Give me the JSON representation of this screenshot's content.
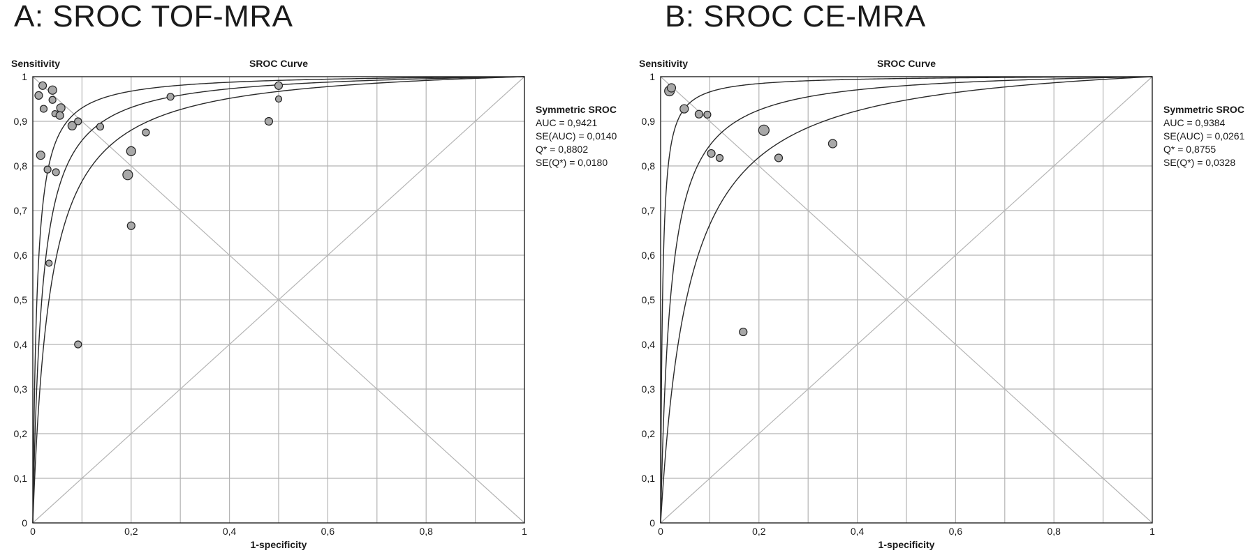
{
  "chart_data": [
    {
      "type": "scatter",
      "title": "A: SROC TOF-MRA",
      "subtitle": "SROC Curve",
      "xlabel": "1-specificity",
      "ylabel": "Sensitivity",
      "xlim": [
        0,
        1
      ],
      "ylim": [
        0,
        1
      ],
      "x_ticks": [
        "0",
        "0,2",
        "0,4",
        "0,6",
        "0,8",
        "1"
      ],
      "y_ticks": [
        "0",
        "0,1",
        "0,2",
        "0,3",
        "0,4",
        "0,5",
        "0,6",
        "0,7",
        "0,8",
        "0,9",
        "1"
      ],
      "grid": true,
      "stats": {
        "heading": "Symmetric SROC",
        "lines": [
          "AUC = 0,9421",
          "SE(AUC) = 0,0140",
          "Q* = 0,8802",
          "SE(Q*) = 0,0180"
        ]
      },
      "points": [
        {
          "x": 0.02,
          "y": 0.98,
          "size": 9
        },
        {
          "x": 0.04,
          "y": 0.97,
          "size": 10
        },
        {
          "x": 0.012,
          "y": 0.958,
          "size": 9
        },
        {
          "x": 0.04,
          "y": 0.948,
          "size": 8
        },
        {
          "x": 0.022,
          "y": 0.928,
          "size": 8
        },
        {
          "x": 0.057,
          "y": 0.93,
          "size": 10
        },
        {
          "x": 0.045,
          "y": 0.917,
          "size": 7
        },
        {
          "x": 0.055,
          "y": 0.913,
          "size": 9
        },
        {
          "x": 0.08,
          "y": 0.89,
          "size": 10
        },
        {
          "x": 0.092,
          "y": 0.9,
          "size": 8
        },
        {
          "x": 0.137,
          "y": 0.888,
          "size": 8
        },
        {
          "x": 0.016,
          "y": 0.824,
          "size": 10
        },
        {
          "x": 0.03,
          "y": 0.792,
          "size": 8
        },
        {
          "x": 0.047,
          "y": 0.786,
          "size": 8
        },
        {
          "x": 0.2,
          "y": 0.833,
          "size": 11
        },
        {
          "x": 0.193,
          "y": 0.78,
          "size": 12
        },
        {
          "x": 0.23,
          "y": 0.875,
          "size": 8
        },
        {
          "x": 0.28,
          "y": 0.955,
          "size": 8
        },
        {
          "x": 0.2,
          "y": 0.666,
          "size": 9
        },
        {
          "x": 0.033,
          "y": 0.582,
          "size": 7
        },
        {
          "x": 0.092,
          "y": 0.4,
          "size": 8
        },
        {
          "x": 0.48,
          "y": 0.9,
          "size": 9
        },
        {
          "x": 0.5,
          "y": 0.98,
          "size": 9
        },
        {
          "x": 0.5,
          "y": 0.95,
          "size": 7
        }
      ]
    },
    {
      "type": "scatter",
      "title": "B: SROC CE-MRA",
      "subtitle": "SROC Curve",
      "xlabel": "1-specificity",
      "ylabel": "Sensitivity",
      "xlim": [
        0,
        1
      ],
      "ylim": [
        0,
        1
      ],
      "x_ticks": [
        "0",
        "0,2",
        "0,4",
        "0,6",
        "0,8",
        "1"
      ],
      "y_ticks": [
        "0",
        "0,1",
        "0,2",
        "0,3",
        "0,4",
        "0,5",
        "0,6",
        "0,7",
        "0,8",
        "0,9",
        "1"
      ],
      "grid": true,
      "stats": {
        "heading": "Symmetric SROC",
        "lines": [
          "AUC = 0,9384",
          "SE(AUC) = 0,0261",
          "Q* = 0,8755",
          "SE(Q*) = 0,0328"
        ]
      },
      "points": [
        {
          "x": 0.018,
          "y": 0.968,
          "size": 12
        },
        {
          "x": 0.022,
          "y": 0.975,
          "size": 10
        },
        {
          "x": 0.048,
          "y": 0.928,
          "size": 10
        },
        {
          "x": 0.078,
          "y": 0.916,
          "size": 9
        },
        {
          "x": 0.095,
          "y": 0.915,
          "size": 8
        },
        {
          "x": 0.103,
          "y": 0.828,
          "size": 9
        },
        {
          "x": 0.12,
          "y": 0.818,
          "size": 8
        },
        {
          "x": 0.21,
          "y": 0.88,
          "size": 13
        },
        {
          "x": 0.24,
          "y": 0.818,
          "size": 9
        },
        {
          "x": 0.35,
          "y": 0.85,
          "size": 10
        },
        {
          "x": 0.168,
          "y": 0.428,
          "size": 9
        }
      ]
    }
  ]
}
